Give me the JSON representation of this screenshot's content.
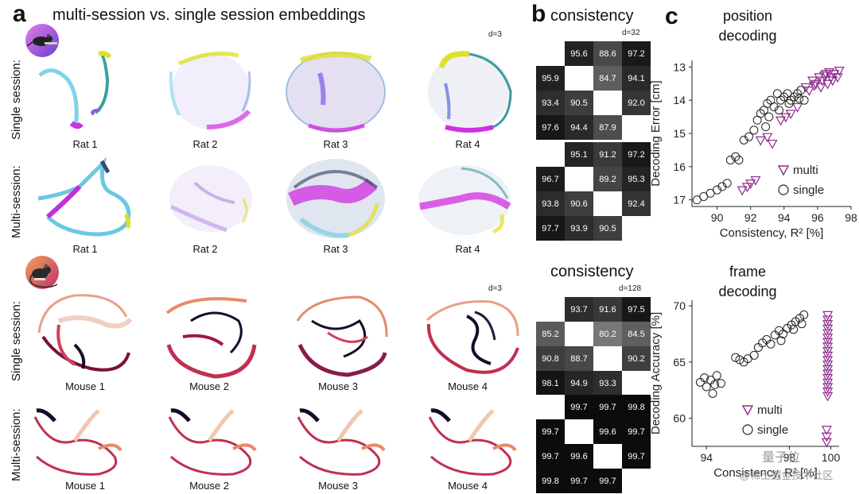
{
  "panel_a": {
    "label": "a",
    "title": "multi-session vs. single session embeddings",
    "rat_dim": "d=3",
    "mouse_dim": "d=3",
    "row_labels": {
      "single": "Single session:",
      "multi": "Multi-session:"
    },
    "rats": [
      "Rat 1",
      "Rat 2",
      "Rat 3",
      "Rat 4"
    ],
    "mice": [
      "Mouse 1",
      "Mouse 2",
      "Mouse 3",
      "Mouse 4"
    ],
    "rat_colors": [
      "#e040fb",
      "#7b61ff",
      "#40c4ff",
      "#7cd6c4",
      "#e4ea2b"
    ],
    "mouse_colors": [
      "#1a0b2e",
      "#8b1a4a",
      "#d4475a",
      "#ee8a6a",
      "#f6cfb8"
    ]
  },
  "panel_b": {
    "label": "b",
    "top_title": "consistency",
    "top_dim": "d=32",
    "bottom_title": "consistency",
    "bottom_dim": "d=128",
    "rat_single": [
      [
        "",
        "95.6",
        "88.6",
        "97.2"
      ],
      [
        "95.9",
        "",
        "84.7",
        "94.1"
      ],
      [
        "93.4",
        "90.5",
        "",
        "92.0"
      ],
      [
        "97.6",
        "94.4",
        "87.9",
        ""
      ]
    ],
    "rat_multi": [
      [
        "",
        "95.1",
        "91.2",
        "97.2"
      ],
      [
        "96.7",
        "",
        "89.2",
        "95.3"
      ],
      [
        "93.8",
        "90.6",
        "",
        "92.4"
      ],
      [
        "97.7",
        "93.9",
        "90.5",
        ""
      ]
    ],
    "mouse_single": [
      [
        "",
        "93.7",
        "91.6",
        "97.5"
      ],
      [
        "85.2",
        "",
        "80.2",
        "84.5"
      ],
      [
        "90.8",
        "88.7",
        "",
        "90.2"
      ],
      [
        "98.1",
        "94.9",
        "93.3",
        ""
      ]
    ],
    "mouse_multi": [
      [
        "",
        "99.7",
        "99.7",
        "99.8"
      ],
      [
        "99.7",
        "",
        "99.6",
        "99.7"
      ],
      [
        "99.7",
        "99.6",
        "",
        "99.7"
      ],
      [
        "99.8",
        "99.7",
        "99.7",
        ""
      ]
    ]
  },
  "panel_c": {
    "label": "c",
    "top_title_1": "position",
    "top_title_2": "decoding",
    "bottom_title_1": "frame",
    "bottom_title_2": "decoding",
    "watermark_1": "量子位",
    "watermark_2": "@稀土掘金技术社区",
    "accent_multi": "#8e2a8e",
    "accent_single": "#222222"
  },
  "chart_data": [
    {
      "type": "scatter",
      "title": "position decoding",
      "xlabel": "Consistency, R² [%]",
      "ylabel": "Decoding Error [cm]",
      "xlim": [
        88.5,
        98
      ],
      "ylim": [
        17.2,
        12.8
      ],
      "xticks": [
        "90",
        "92",
        "94",
        "96",
        "98"
      ],
      "yticks": [
        "13",
        "14",
        "15",
        "16",
        "17"
      ],
      "legend": [
        "multi",
        "single"
      ],
      "series": [
        {
          "name": "multi",
          "marker": "triangle-down",
          "points": [
            [
              91.8,
              16.6
            ],
            [
              92.0,
              16.5
            ],
            [
              92.3,
              16.4
            ],
            [
              91.5,
              16.7
            ],
            [
              92.6,
              15.2
            ],
            [
              93.0,
              15.1
            ],
            [
              93.3,
              15.3
            ],
            [
              93.8,
              14.6
            ],
            [
              94.1,
              14.5
            ],
            [
              94.4,
              14.4
            ],
            [
              94.8,
              14.2
            ],
            [
              95.3,
              13.6
            ],
            [
              95.7,
              13.4
            ],
            [
              95.9,
              13.5
            ],
            [
              96.1,
              13.3
            ],
            [
              96.3,
              13.4
            ],
            [
              96.5,
              13.2
            ],
            [
              96.6,
              13.5
            ],
            [
              96.8,
              13.3
            ],
            [
              97.0,
              13.2
            ],
            [
              97.2,
              13.3
            ],
            [
              96.2,
              13.6
            ],
            [
              95.5,
              13.7
            ],
            [
              96.9,
              13.4
            ],
            [
              97.3,
              13.1
            ],
            [
              96.4,
              13.25
            ],
            [
              95.8,
              13.55
            ],
            [
              96.7,
              13.15
            ]
          ]
        },
        {
          "name": "single",
          "marker": "circle",
          "points": [
            [
              88.8,
              17.0
            ],
            [
              89.2,
              16.9
            ],
            [
              89.6,
              16.8
            ],
            [
              90.0,
              16.7
            ],
            [
              90.3,
              16.6
            ],
            [
              90.6,
              16.5
            ],
            [
              90.8,
              15.8
            ],
            [
              91.1,
              15.7
            ],
            [
              91.3,
              15.8
            ],
            [
              91.6,
              15.2
            ],
            [
              91.9,
              15.1
            ],
            [
              92.2,
              14.9
            ],
            [
              92.4,
              14.6
            ],
            [
              92.6,
              14.4
            ],
            [
              92.8,
              14.3
            ],
            [
              93.0,
              14.1
            ],
            [
              93.2,
              14.0
            ],
            [
              93.4,
              14.2
            ],
            [
              93.6,
              13.8
            ],
            [
              93.8,
              14.0
            ],
            [
              94.0,
              13.9
            ],
            [
              94.2,
              13.8
            ],
            [
              94.4,
              14.0
            ],
            [
              94.6,
              13.9
            ],
            [
              94.8,
              13.8
            ],
            [
              95.0,
              13.7
            ],
            [
              95.2,
              14.0
            ],
            [
              93.1,
              14.5
            ],
            [
              92.9,
              14.8
            ],
            [
              94.3,
              14.1
            ],
            [
              94.9,
              13.95
            ],
            [
              93.7,
              14.3
            ]
          ]
        }
      ]
    },
    {
      "type": "scatter",
      "title": "frame decoding",
      "xlabel": "Consistency, R² [%]",
      "ylabel": "Decoding Accuracy [%]",
      "xlim": [
        93.3,
        100.4
      ],
      "ylim": [
        57.5,
        70.5
      ],
      "xticks": [
        "94",
        "",
        "98",
        "100"
      ],
      "yticks": [
        "60",
        "65",
        "70"
      ],
      "legend": [
        "multi",
        "single"
      ],
      "series": [
        {
          "name": "multi",
          "marker": "triangle-down",
          "points": [
            [
              99.85,
              69.2
            ],
            [
              99.85,
              68.8
            ],
            [
              99.85,
              68.4
            ],
            [
              99.85,
              68.0
            ],
            [
              99.85,
              67.6
            ],
            [
              99.85,
              67.2
            ],
            [
              99.85,
              66.8
            ],
            [
              99.85,
              66.4
            ],
            [
              99.85,
              66.0
            ],
            [
              99.85,
              65.6
            ],
            [
              99.85,
              65.2
            ],
            [
              99.85,
              64.8
            ],
            [
              99.85,
              64.4
            ],
            [
              99.85,
              64.0
            ],
            [
              99.85,
              63.6
            ],
            [
              99.85,
              63.2
            ],
            [
              99.85,
              62.8
            ],
            [
              99.85,
              62.4
            ],
            [
              99.85,
              62.0
            ],
            [
              99.8,
              59.0
            ],
            [
              99.8,
              58.4
            ],
            [
              99.8,
              57.9
            ]
          ]
        },
        {
          "name": "single",
          "marker": "circle",
          "points": [
            [
              93.7,
              63.2
            ],
            [
              93.9,
              63.6
            ],
            [
              94.0,
              62.8
            ],
            [
              94.2,
              63.4
            ],
            [
              94.3,
              62.2
            ],
            [
              94.4,
              63.0
            ],
            [
              94.5,
              63.8
            ],
            [
              94.7,
              63.1
            ],
            [
              95.4,
              65.4
            ],
            [
              95.6,
              65.2
            ],
            [
              95.8,
              65.0
            ],
            [
              96.0,
              65.3
            ],
            [
              96.3,
              65.6
            ],
            [
              96.5,
              66.3
            ],
            [
              96.7,
              66.7
            ],
            [
              96.9,
              67.0
            ],
            [
              97.1,
              66.6
            ],
            [
              97.3,
              67.4
            ],
            [
              97.5,
              67.8
            ],
            [
              97.7,
              67.5
            ],
            [
              97.9,
              68.0
            ],
            [
              98.1,
              68.3
            ],
            [
              98.3,
              68.6
            ],
            [
              98.5,
              68.9
            ],
            [
              98.7,
              69.2
            ],
            [
              98.2,
              67.9
            ],
            [
              97.6,
              66.9
            ],
            [
              98.6,
              68.4
            ]
          ]
        }
      ]
    }
  ]
}
